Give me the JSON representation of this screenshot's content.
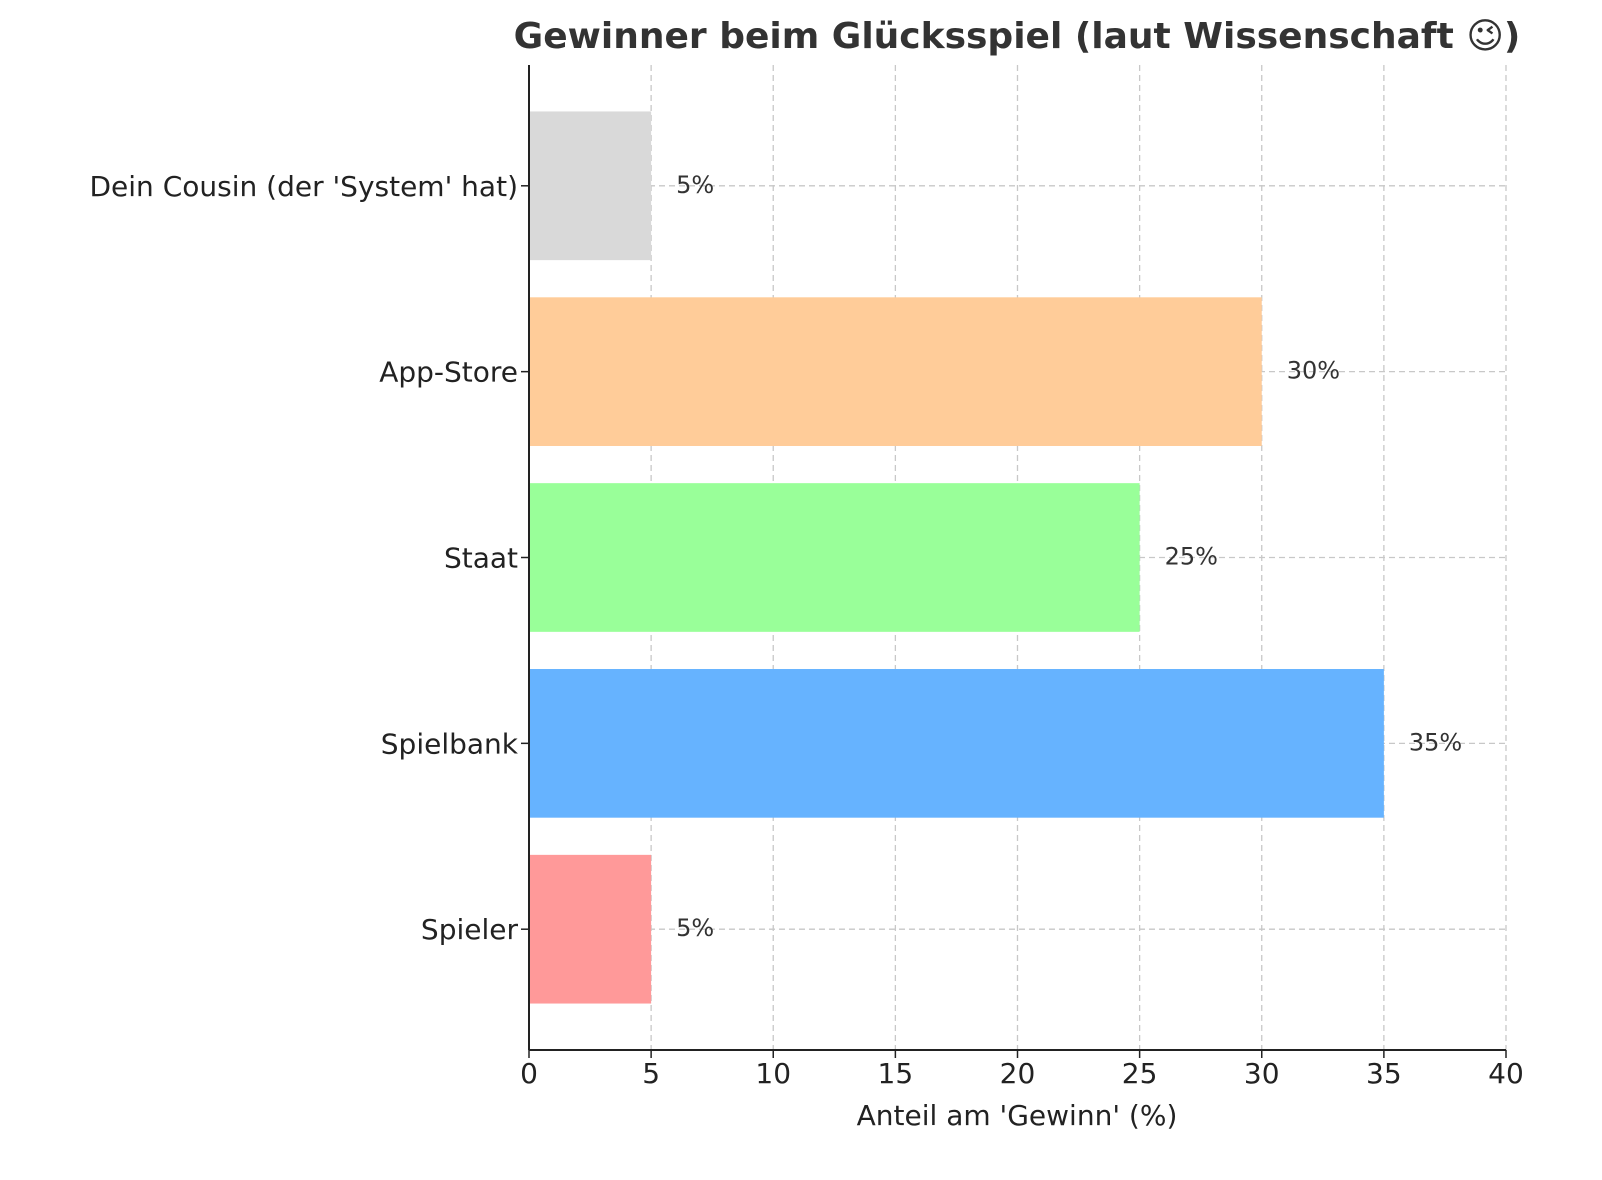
{
  "chart_data": {
    "type": "barh",
    "title": "Gewinner beim Glücksspiel (laut Wissenschaft 😉)",
    "xlabel": "Anteil am 'Gewinn' (%)",
    "categories": [
      "Spieler",
      "Spielbank",
      "Staat",
      "App-Store",
      "Dein Cousin (der 'System' hat)"
    ],
    "values": [
      5,
      35,
      25,
      30,
      5
    ],
    "value_labels": [
      "5%",
      "35%",
      "25%",
      "30%",
      "5%"
    ],
    "colors": [
      "#ff9999",
      "#66b3ff",
      "#99ff99",
      "#ffcc99",
      "#d9d9d9"
    ],
    "xlim": [
      0,
      40
    ],
    "xticks": [
      0,
      5,
      10,
      15,
      20,
      25,
      30,
      35,
      40
    ],
    "grid": true
  }
}
